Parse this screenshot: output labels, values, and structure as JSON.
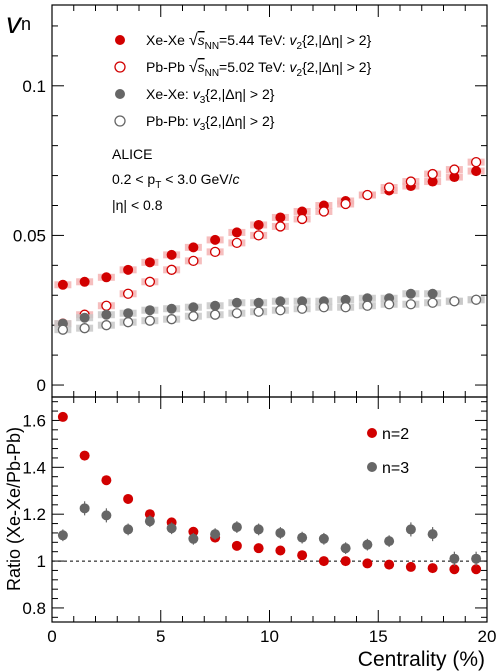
{
  "chart_data": [
    {
      "type": "scatter",
      "panel": "top",
      "ylabel": "v",
      "ylabel_sub": "n",
      "xlim": [
        0,
        20
      ],
      "ylim": [
        -0.004,
        0.127
      ],
      "yticks": [
        {
          "value": 0,
          "label": "0"
        },
        {
          "value": 0.05,
          "label": "0.05"
        },
        {
          "value": 0.1,
          "label": "0.1"
        }
      ],
      "annotations": [
        "ALICE",
        "0.2 < p",
        "T",
        " < 3.0 GeV/",
        "c",
        "|η| < 0.8"
      ],
      "x": [
        0.5,
        1.5,
        2.5,
        3.5,
        4.5,
        5.5,
        6.5,
        7.5,
        8.5,
        9.5,
        10.5,
        11.5,
        12.5,
        13.5,
        14.5,
        15.5,
        16.5,
        17.5,
        18.5,
        19.5
      ],
      "series": [
        {
          "name": "Xe-Xe √sNN=5.44 TeV: v2{2,|Δη| > 2}",
          "legend": {
            "pre": "Xe-Xe ",
            "sqrt": "s",
            "sub": "NN",
            "mid": "=5.44 TeV: ",
            "v": "v",
            "vsub": "2",
            "post": "{2,|Δη| > 2}"
          },
          "color": "#d10000",
          "filled": true,
          "values": [
            0.0335,
            0.0345,
            0.036,
            0.0385,
            0.041,
            0.0435,
            0.046,
            0.0485,
            0.051,
            0.0535,
            0.056,
            0.058,
            0.06,
            0.0615,
            0.0635,
            0.065,
            0.0665,
            0.068,
            0.0695,
            0.0715
          ],
          "errors": [
            0.0008,
            0.0006,
            0.0006,
            0.0006,
            0.0006,
            0.0006,
            0.0006,
            0.0006,
            0.0006,
            0.0006,
            0.0006,
            0.0006,
            0.0006,
            0.0006,
            0.0006,
            0.0006,
            0.0006,
            0.0006,
            0.0006,
            0.0008
          ]
        },
        {
          "name": "Pb-Pb √sNN=5.02 TeV: v2{2,|Δη| > 2}",
          "legend": {
            "pre": "Pb-Pb ",
            "sqrt": "s",
            "sub": "NN",
            "mid": "=5.02 TeV: ",
            "v": "v",
            "vsub": "2",
            "post": "{2,|Δη| > 2}"
          },
          "color": "#d10000",
          "filled": false,
          "values": [
            0.0205,
            0.0235,
            0.0265,
            0.0305,
            0.0345,
            0.0385,
            0.0415,
            0.0445,
            0.0475,
            0.05,
            0.053,
            0.0555,
            0.058,
            0.0605,
            0.0635,
            0.066,
            0.068,
            0.0705,
            0.072,
            0.0745
          ],
          "errors": [
            0.0003,
            0.0003,
            0.0003,
            0.0003,
            0.0003,
            0.0003,
            0.0003,
            0.0003,
            0.0003,
            0.0003,
            0.0003,
            0.0003,
            0.0003,
            0.0003,
            0.0003,
            0.0003,
            0.0003,
            0.0003,
            0.0003,
            0.0003
          ]
        },
        {
          "name": "Xe-Xe: v3{2,|Δη| > 2}",
          "legend": {
            "pre": "Xe-Xe: ",
            "v": "v",
            "vsub": "3",
            "post": "{2,|Δη| > 2}"
          },
          "color": "#666666",
          "filled": true,
          "values": [
            0.0205,
            0.0225,
            0.0235,
            0.024,
            0.025,
            0.0255,
            0.026,
            0.0265,
            0.0275,
            0.0275,
            0.028,
            0.028,
            0.028,
            0.0285,
            0.029,
            0.029,
            0.0305,
            0.0305,
            0.028,
            0.0285
          ],
          "errors": [
            0.0006,
            0.0006,
            0.0005,
            0.0005,
            0.0005,
            0.0005,
            0.0005,
            0.0005,
            0.0005,
            0.0005,
            0.0005,
            0.0005,
            0.0005,
            0.0005,
            0.0005,
            0.0005,
            0.0005,
            0.0005,
            0.0006,
            0.0006
          ]
        },
        {
          "name": "Pb-Pb: v3{2,|Δη| > 2}",
          "legend": {
            "pre": "Pb-Pb: ",
            "v": "v",
            "vsub": "3",
            "post": "{2,|Δη| > 2}"
          },
          "color": "#666666",
          "filled": false,
          "values": [
            0.0185,
            0.019,
            0.02,
            0.021,
            0.0215,
            0.022,
            0.023,
            0.0235,
            0.024,
            0.0245,
            0.025,
            0.0255,
            0.026,
            0.026,
            0.0265,
            0.027,
            0.027,
            0.0275,
            0.028,
            0.0285
          ],
          "errors": [
            0.0002,
            0.0002,
            0.0002,
            0.0002,
            0.0002,
            0.0002,
            0.0002,
            0.0002,
            0.0002,
            0.0002,
            0.0002,
            0.0002,
            0.0002,
            0.0002,
            0.0002,
            0.0002,
            0.0002,
            0.0002,
            0.0002,
            0.0002
          ]
        }
      ]
    },
    {
      "type": "scatter",
      "panel": "bottom",
      "ylabel": "Ratio (Xe-Xe/Pb-Pb)",
      "xlabel": "Centrality (%)",
      "xlim": [
        0,
        20
      ],
      "ylim": [
        0.74,
        1.7
      ],
      "reference_line": 1,
      "xticks": [
        {
          "value": 0,
          "label": "0"
        },
        {
          "value": 5,
          "label": "5"
        },
        {
          "value": 10,
          "label": "10"
        },
        {
          "value": 15,
          "label": "15"
        },
        {
          "value": 20,
          "label": "20"
        }
      ],
      "yticks": [
        {
          "value": 0.8,
          "label": "0.8"
        },
        {
          "value": 1,
          "label": "1"
        },
        {
          "value": 1.2,
          "label": "1.2"
        },
        {
          "value": 1.4,
          "label": "1.4"
        },
        {
          "value": 1.6,
          "label": "1.6"
        }
      ],
      "x": [
        0.5,
        1.5,
        2.5,
        3.5,
        4.5,
        5.5,
        6.5,
        7.5,
        8.5,
        9.5,
        10.5,
        11.5,
        12.5,
        13.5,
        14.5,
        15.5,
        16.5,
        17.5,
        18.5,
        19.5
      ],
      "series": [
        {
          "name": "n=2",
          "color": "#d10000",
          "values": [
            1.615,
            1.45,
            1.345,
            1.265,
            1.2,
            1.165,
            1.125,
            1.1,
            1.065,
            1.055,
            1.045,
            1.025,
            1.0,
            1.0,
            0.99,
            0.985,
            0.975,
            0.97,
            0.965,
            0.965
          ],
          "errors": [
            0.012,
            0.01,
            0.01,
            0.01,
            0.01,
            0.01,
            0.01,
            0.01,
            0.01,
            0.01,
            0.01,
            0.01,
            0.01,
            0.01,
            0.01,
            0.01,
            0.01,
            0.01,
            0.01,
            0.012
          ]
        },
        {
          "name": "n=3",
          "color": "#666666",
          "values": [
            1.11,
            1.225,
            1.195,
            1.135,
            1.17,
            1.14,
            1.095,
            1.115,
            1.145,
            1.135,
            1.12,
            1.1,
            1.095,
            1.055,
            1.07,
            1.085,
            1.135,
            1.115,
            1.01,
            1.01
          ],
          "errors": [
            0.025,
            0.03,
            0.03,
            0.025,
            0.025,
            0.025,
            0.025,
            0.025,
            0.025,
            0.025,
            0.025,
            0.025,
            0.025,
            0.025,
            0.025,
            0.025,
            0.03,
            0.03,
            0.03,
            0.03
          ]
        }
      ]
    }
  ]
}
